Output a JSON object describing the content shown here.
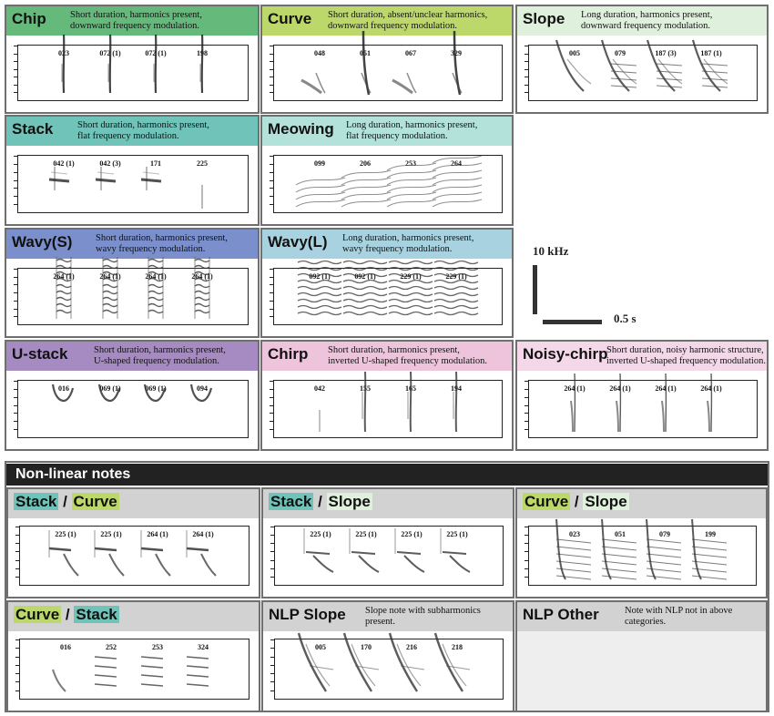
{
  "colors": {
    "chip": "#64b97b",
    "curve": "#bcd86b",
    "slope": "#dff1dc",
    "stack": "#6fc3b8",
    "meowing": "#b3e2db",
    "wavy_s": "#7a8fcc",
    "wavy_l": "#a9d2e0",
    "u_stack": "#a68ac2",
    "chirp": "#eec4dd",
    "noisy_chirp": "#f4d7e8",
    "nl_header": "#d2d2d2",
    "section_bar": "#222222"
  },
  "panels": [
    {
      "name": "Chip",
      "desc": [
        "Short duration, harmonics present,",
        "downward frequency modulation."
      ],
      "color": "#64b97b",
      "labels": [
        "023",
        "072 (1)",
        "072 (1)",
        "198"
      ],
      "shape": "chip"
    },
    {
      "name": "Curve",
      "desc": [
        "Short duration, absent/unclear harmonics,",
        "downward frequency modulation."
      ],
      "color": "#bcd86b",
      "labels": [
        "048",
        "051",
        "067",
        "329"
      ],
      "shape": "curve"
    },
    {
      "name": "Slope",
      "desc": [
        "Long duration, harmonics present,",
        "downward frequency modulation."
      ],
      "color": "#dff1dc",
      "labels": [
        "005",
        "079",
        "187 (3)",
        "187 (1)"
      ],
      "shape": "slope"
    },
    {
      "name": "Stack",
      "desc": [
        "Short duration, harmonics present,",
        "flat frequency modulation."
      ],
      "color": "#6fc3b8",
      "labels": [
        "042 (1)",
        "042 (3)",
        "171",
        "225"
      ],
      "shape": "stack"
    },
    {
      "name": "Meowing",
      "desc": [
        "Long duration, harmonics present,",
        "flat frequency modulation."
      ],
      "color": "#b3e2db",
      "labels": [
        "099",
        "206",
        "253",
        "264"
      ],
      "shape": "meow"
    },
    {
      "name": "Wavy(S)",
      "desc": [
        "Short duration, harmonics present,",
        "wavy frequency modulation."
      ],
      "color": "#7a8fcc",
      "labels": [
        "264 (1)",
        "264 (1)",
        "264 (1)",
        "264 (1)"
      ],
      "shape": "wavys"
    },
    {
      "name": "Wavy(L)",
      "desc": [
        "Long duration, harmonics present,",
        "wavy frequency modulation."
      ],
      "color": "#a9d2e0",
      "labels": [
        "092 (1)",
        "092 (1)",
        "229 (1)",
        "229 (1)"
      ],
      "shape": "wavyl"
    },
    {
      "name": "U-stack",
      "desc": [
        "Short duration, harmonics present,",
        "U-shaped frequency modulation."
      ],
      "color": "#a68ac2",
      "labels": [
        "016",
        "069 (1)",
        "069 (1)",
        "094"
      ],
      "shape": "ustack"
    },
    {
      "name": "Chirp",
      "desc": [
        "Short duration, harmonics present,",
        "inverted U-shaped frequency modulation."
      ],
      "color": "#eec4dd",
      "labels": [
        "042",
        "155",
        "165",
        "194"
      ],
      "shape": "chirp"
    },
    {
      "name": "Noisy-chirp",
      "desc": [
        "Short duration, noisy harmonic structure,",
        "inverted U-shaped frequency modulation."
      ],
      "color": "#f4d7e8",
      "labels": [
        "264 (1)",
        "264 (1)",
        "264 (1)",
        "264 (1)"
      ],
      "shape": "noisy"
    }
  ],
  "scale_bar": {
    "freq": "10 kHz",
    "time": "0.5 s"
  },
  "section_title": "Non-linear notes",
  "nl_panels": [
    {
      "first": "Stack",
      "sep": " / ",
      "second": "Curve",
      "first_color": "#6fc3b8",
      "second_color": "#bcd86b",
      "labels": [
        "225 (1)",
        "225 (1)",
        "264 (1)",
        "264 (1)"
      ],
      "shape": "stackcurve"
    },
    {
      "first": "Stack",
      "sep": " / ",
      "second": "Slope",
      "first_color": "#6fc3b8",
      "second_color": "#dff1dc",
      "labels": [
        "225 (1)",
        "225 (1)",
        "225 (1)",
        "225 (1)"
      ],
      "shape": "stackslope"
    },
    {
      "first": "Curve",
      "sep": " / ",
      "second": "Slope",
      "first_color": "#bcd86b",
      "second_color": "#dff1dc",
      "labels": [
        "023",
        "051",
        "079",
        "199"
      ],
      "shape": "curveslope"
    },
    {
      "first": "Curve",
      "sep": " / ",
      "second": "Stack",
      "first_color": "#bcd86b",
      "second_color": "#6fc3b8",
      "labels": [
        "016",
        "252",
        "253",
        "324"
      ],
      "shape": "curvestack"
    },
    {
      "name": "NLP Slope",
      "desc": [
        "Slope note with subharmonics",
        "present."
      ],
      "labels": [
        "005",
        "170",
        "216",
        "218"
      ],
      "shape": "nlpslope"
    },
    {
      "name": "NLP Other",
      "desc": [
        "Note with NLP not in above",
        "categories."
      ],
      "labels": [],
      "shape": "empty"
    }
  ]
}
